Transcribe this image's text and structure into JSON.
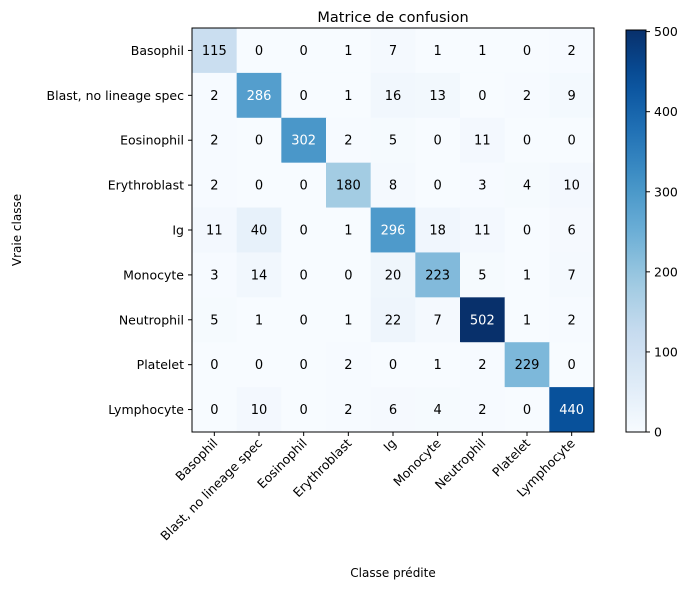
{
  "chart_data": {
    "type": "heatmap",
    "title": "Matrice de confusion",
    "xlabel": "Classe prédite",
    "ylabel": "Vraie classe",
    "row_labels": [
      "Basophil",
      "Blast, no lineage spec",
      "Eosinophil",
      "Erythroblast",
      "Ig",
      "Monocyte",
      "Neutrophil",
      "Platelet",
      "Lymphocyte"
    ],
    "col_labels": [
      "Basophil",
      "Blast, no lineage spec",
      "Eosinophil",
      "Erythroblast",
      "Ig",
      "Monocyte",
      "Neutrophil",
      "Platelet",
      "Lymphocyte"
    ],
    "values": [
      [
        115,
        0,
        0,
        1,
        7,
        1,
        1,
        0,
        2
      ],
      [
        2,
        286,
        0,
        1,
        16,
        13,
        0,
        2,
        9
      ],
      [
        2,
        0,
        302,
        2,
        5,
        0,
        11,
        0,
        0
      ],
      [
        2,
        0,
        0,
        180,
        8,
        0,
        3,
        4,
        10
      ],
      [
        11,
        40,
        0,
        1,
        296,
        18,
        11,
        0,
        6
      ],
      [
        3,
        14,
        0,
        0,
        20,
        223,
        5,
        1,
        7
      ],
      [
        5,
        1,
        0,
        1,
        22,
        7,
        502,
        1,
        2
      ],
      [
        0,
        0,
        0,
        2,
        0,
        1,
        2,
        229,
        0
      ],
      [
        0,
        10,
        0,
        2,
        6,
        4,
        2,
        0,
        440
      ]
    ],
    "colormap": "Blues",
    "vmin": 0,
    "vmax": 502,
    "colorbar_ticks": [
      0,
      100,
      200,
      300,
      400,
      500
    ]
  }
}
